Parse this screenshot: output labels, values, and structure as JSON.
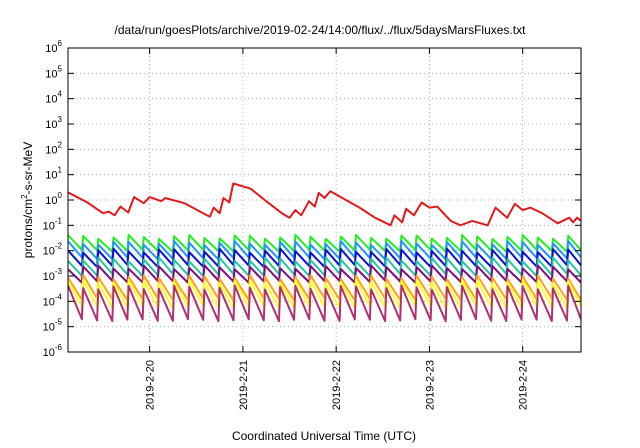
{
  "chart_data": {
    "type": "line",
    "title": "/data/run/goesPlots/archive/2019-02-24/14:00/flux/../flux/5daysMarsFluxes.txt",
    "xlabel": "Coordinated Universal Time (UTC)",
    "ylabel_parts": {
      "base": "protons/cm",
      "exp": "2",
      "rest": "-s-sr-MeV"
    },
    "y_scale": "log",
    "ylim": [
      1e-06,
      1000000.0
    ],
    "y_ticks": [
      {
        "base": "10",
        "exp": "-6"
      },
      {
        "base": "10",
        "exp": "-5"
      },
      {
        "base": "10",
        "exp": "-4"
      },
      {
        "base": "10",
        "exp": "-3"
      },
      {
        "base": "10",
        "exp": "-2"
      },
      {
        "base": "10",
        "exp": "-1"
      },
      {
        "base": "10",
        "exp": "0"
      },
      {
        "base": "10",
        "exp": "1"
      },
      {
        "base": "10",
        "exp": "2"
      },
      {
        "base": "10",
        "exp": "3"
      },
      {
        "base": "10",
        "exp": "4"
      },
      {
        "base": "10",
        "exp": "5"
      },
      {
        "base": "10",
        "exp": "6"
      }
    ],
    "x_range": [
      "2019-02-19T03:00",
      "2019-02-24T15:00"
    ],
    "x_ticks": [
      {
        "label": "2019-2-20",
        "date": "2019-02-20T00:00"
      },
      {
        "label": "2019-2-21",
        "date": "2019-02-21T00:00"
      },
      {
        "label": "2019-2-22",
        "date": "2019-02-22T00:00"
      },
      {
        "label": "2019-2-23",
        "date": "2019-02-23T00:00"
      },
      {
        "label": "2019-2-24",
        "date": "2019-02-24T00:00"
      }
    ],
    "grid": true,
    "legend": "none",
    "series": [
      {
        "color": "#e31a1c",
        "points": [
          [
            "2019-02-19T03:00",
            2.0
          ],
          [
            "2019-02-19T08:00",
            0.8
          ],
          [
            "2019-02-19T12:00",
            0.3
          ],
          [
            "2019-02-19T13:30",
            0.35
          ],
          [
            "2019-02-19T15:00",
            0.25
          ],
          [
            "2019-02-19T16:30",
            0.55
          ],
          [
            "2019-02-19T18:30",
            0.32
          ],
          [
            "2019-02-19T20:00",
            1.3
          ],
          [
            "2019-02-19T22:30",
            0.75
          ],
          [
            "2019-02-20T00:00",
            1.3
          ],
          [
            "2019-02-20T03:00",
            0.9
          ],
          [
            "2019-02-20T04:00",
            1.2
          ],
          [
            "2019-02-20T09:00",
            0.75
          ],
          [
            "2019-02-20T13:00",
            0.35
          ],
          [
            "2019-02-20T15:30",
            0.22
          ],
          [
            "2019-02-20T16:30",
            0.5
          ],
          [
            "2019-02-20T18:00",
            0.3
          ],
          [
            "2019-02-20T19:00",
            1.2
          ],
          [
            "2019-02-20T20:30",
            0.8
          ],
          [
            "2019-02-20T21:30",
            4.5
          ],
          [
            "2019-02-21T02:00",
            2.8
          ],
          [
            "2019-02-21T06:00",
            0.9
          ],
          [
            "2019-02-21T10:00",
            0.3
          ],
          [
            "2019-02-21T12:00",
            0.2
          ],
          [
            "2019-02-21T13:30",
            0.4
          ],
          [
            "2019-02-21T15:00",
            0.25
          ],
          [
            "2019-02-21T17:00",
            0.9
          ],
          [
            "2019-02-21T18:30",
            0.55
          ],
          [
            "2019-02-21T19:30",
            1.9
          ],
          [
            "2019-02-21T21:00",
            1.2
          ],
          [
            "2019-02-21T22:30",
            2.2
          ],
          [
            "2019-02-22T06:00",
            0.5
          ],
          [
            "2019-02-22T10:00",
            0.2
          ],
          [
            "2019-02-22T14:00",
            0.1
          ],
          [
            "2019-02-22T15:00",
            0.25
          ],
          [
            "2019-02-22T17:00",
            0.13
          ],
          [
            "2019-02-22T18:00",
            0.45
          ],
          [
            "2019-02-22T20:00",
            0.25
          ],
          [
            "2019-02-22T22:00",
            0.8
          ],
          [
            "2019-02-23T00:00",
            0.5
          ],
          [
            "2019-02-23T02:00",
            0.55
          ],
          [
            "2019-02-23T05:30",
            0.15
          ],
          [
            "2019-02-23T08:00",
            0.1
          ],
          [
            "2019-02-23T11:00",
            0.15
          ],
          [
            "2019-02-23T15:00",
            0.1
          ],
          [
            "2019-02-23T17:00",
            0.5
          ],
          [
            "2019-02-23T20:00",
            0.2
          ],
          [
            "2019-02-23T22:00",
            0.7
          ],
          [
            "2019-02-24T00:00",
            0.4
          ],
          [
            "2019-02-24T02:00",
            0.5
          ],
          [
            "2019-02-24T05:00",
            0.3
          ],
          [
            "2019-02-24T09:00",
            0.12
          ],
          [
            "2019-02-24T12:00",
            0.2
          ],
          [
            "2019-02-24T13:00",
            0.13
          ],
          [
            "2019-02-24T14:00",
            0.2
          ],
          [
            "2019-02-24T15:00",
            0.15
          ]
        ]
      },
      {
        "color": "#22ee22",
        "sawtooth": {
          "low": 0.01,
          "high": 0.035
        }
      },
      {
        "color": "#2196f3",
        "sawtooth": {
          "low": 0.005,
          "high": 0.02
        }
      },
      {
        "color": "#0a10d0",
        "sawtooth": {
          "low": 0.0025,
          "high": 0.01
        }
      },
      {
        "color": "#26c6a0",
        "sawtooth": {
          "low": 0.0011,
          "high": 0.0045
        }
      },
      {
        "color": "#7a0e80",
        "sawtooth": {
          "low": 0.0006,
          "high": 0.0022
        }
      },
      {
        "color": "#ffa020",
        "sawtooth": {
          "low": 0.00012,
          "high": 0.0009
        }
      },
      {
        "color": "#ffff20",
        "sawtooth": {
          "low": 6e-05,
          "high": 0.0006
        }
      },
      {
        "color": "#b03070",
        "sawtooth": {
          "low": 1.8e-05,
          "high": 0.00035
        }
      }
    ],
    "sawtooth_period_hours": 3.9
  }
}
